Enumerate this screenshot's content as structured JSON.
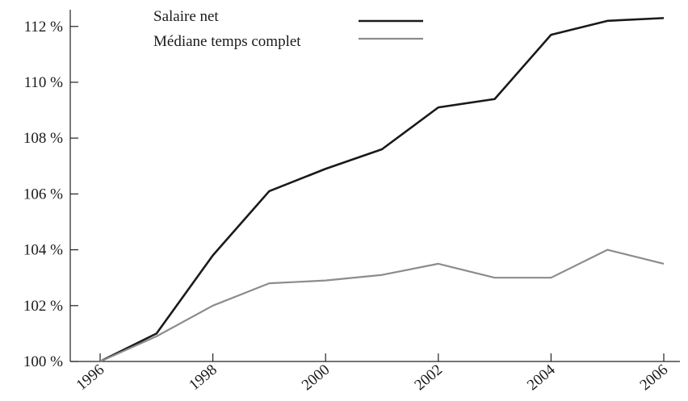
{
  "chart_data": {
    "type": "line",
    "x": [
      1996,
      1997,
      1998,
      1999,
      2000,
      2001,
      2002,
      2003,
      2004,
      2005,
      2006
    ],
    "xticks": [
      "1996",
      "1998",
      "2000",
      "2002",
      "2004",
      "2006"
    ],
    "yticks": [
      "100 %",
      "102 %",
      "104 %",
      "106 %",
      "108 %",
      "110 %",
      "112 %"
    ],
    "xlim": [
      1996,
      2006
    ],
    "ylim": [
      100,
      112.6
    ],
    "grid": false,
    "legend_position": "top",
    "series": [
      {
        "name": "Salaire net",
        "color": "#1a1a1a",
        "values": [
          100,
          101,
          103.8,
          106.1,
          106.9,
          107.6,
          109.1,
          109.4,
          111.7,
          112.2,
          112.3
        ]
      },
      {
        "name": "Médiane temps complet",
        "color": "#8c8c8c",
        "values": [
          100,
          100.9,
          102.0,
          102.8,
          102.9,
          103.1,
          103.5,
          103.0,
          103.0,
          104.0,
          103.5
        ]
      }
    ]
  }
}
